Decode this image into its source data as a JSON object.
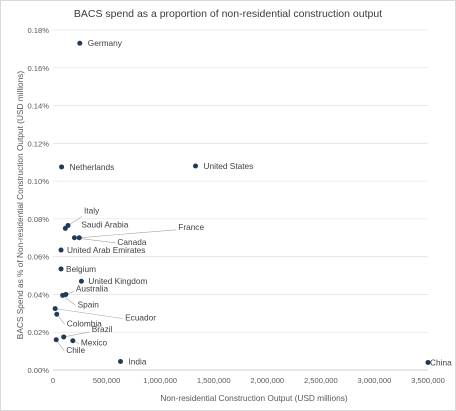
{
  "chart_data": {
    "type": "scatter",
    "title": "BACS spend as a proportion of non-residential construction output",
    "xlabel": "Non-residential Construction Output (USD millions)",
    "ylabel": "BACS Spend as % of Non-residential Construction Output (USD millions)",
    "xlim": [
      0,
      3500000
    ],
    "ylim": [
      0,
      0.0018
    ],
    "x_ticks": [
      0,
      500000,
      1000000,
      1500000,
      2000000,
      2500000,
      3000000,
      3500000
    ],
    "x_tick_labels": [
      "0",
      "500,000",
      "1,000,000",
      "1,500,000",
      "2,000,000",
      "2,500,000",
      "3,000,000",
      "3,500,000"
    ],
    "y_ticks": [
      0,
      0.0002,
      0.0004,
      0.0006,
      0.0008,
      0.001,
      0.0012,
      0.0014,
      0.0016,
      0.0018
    ],
    "y_tick_labels": [
      "0.00%",
      "0.02%",
      "0.04%",
      "0.06%",
      "0.08%",
      "0.10%",
      "0.12%",
      "0.14%",
      "0.16%",
      "0.18%"
    ],
    "grid": "horizontal",
    "legend": "none",
    "marker_color": "#1f3a5a",
    "points": [
      {
        "label": "Germany",
        "x": 250000,
        "y": 0.00173
      },
      {
        "label": "Netherlands",
        "x": 80000,
        "y": 0.001075
      },
      {
        "label": "United States",
        "x": 1330000,
        "y": 0.00108
      },
      {
        "label": "Italy",
        "x": 140000,
        "y": 0.000765
      },
      {
        "label": "Saudi Arabia",
        "x": 115000,
        "y": 0.00075
      },
      {
        "label": "France",
        "x": 245000,
        "y": 0.0007
      },
      {
        "label": "Canada",
        "x": 200000,
        "y": 0.0007
      },
      {
        "label": "United Arab Emirates",
        "x": 75000,
        "y": 0.000635
      },
      {
        "label": "Belgium",
        "x": 75000,
        "y": 0.000535
      },
      {
        "label": "United Kingdom",
        "x": 265000,
        "y": 0.00047
      },
      {
        "label": "Australia",
        "x": 120000,
        "y": 0.0004
      },
      {
        "label": "Spain",
        "x": 90000,
        "y": 0.000395
      },
      {
        "label": "Ecuador",
        "x": 20000,
        "y": 0.000325
      },
      {
        "label": "Colombia",
        "x": 35000,
        "y": 0.000295
      },
      {
        "label": "Brazil",
        "x": 100000,
        "y": 0.000175
      },
      {
        "label": "Mexico",
        "x": 185000,
        "y": 0.000155
      },
      {
        "label": "Chile",
        "x": 30000,
        "y": 0.00016
      },
      {
        "label": "India",
        "x": 630000,
        "y": 4.5e-05
      },
      {
        "label": "China",
        "x": 3500000,
        "y": 4e-05
      }
    ]
  }
}
